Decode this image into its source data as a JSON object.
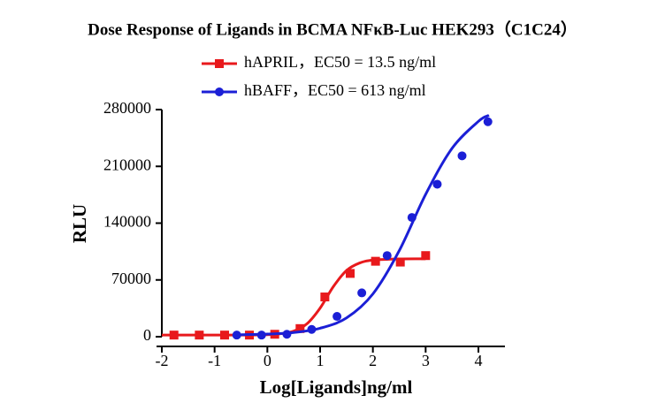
{
  "chart_data": {
    "type": "dose-response",
    "title": "Dose Response of Ligands in BCMA NFκB-Luc HEK293（C1C24）",
    "x_label": "Log[Ligands]ng/ml",
    "y_label": "RLU",
    "xlim": [
      -2,
      4.5
    ],
    "xticks": [
      -2,
      -1,
      0,
      1,
      2,
      3,
      4
    ],
    "ylim": [
      0,
      280000
    ],
    "yticks": [
      0,
      70000,
      140000,
      210000,
      280000
    ],
    "series": [
      {
        "name": "hAPRIL，EC50 = 13.5 ng/ml",
        "color": "#e8191c",
        "marker": "square",
        "x": [
          -1.77,
          -1.29,
          -0.81,
          -0.34,
          0.14,
          0.62,
          1.09,
          1.57,
          2.05,
          2.52,
          3.0
        ],
        "values": [
          2000,
          2000,
          2000,
          2000,
          3000,
          10000,
          49000,
          78000,
          93000,
          92000,
          100000
        ],
        "fit": {
          "x": [
            -2,
            -1,
            -0.5,
            0,
            0.25,
            0.5,
            0.75,
            1,
            1.25,
            1.5,
            1.75,
            2,
            2.5,
            3
          ],
          "values": [
            2000,
            2000,
            2050,
            2514,
            3605,
            6896,
            15926,
            35333,
            61683,
            81526,
            90889,
            94320,
            95831,
            95980
          ]
        }
      },
      {
        "name": "hBAFF，EC50 = 613 ng/ml",
        "color": "#1b1fd6",
        "marker": "circle",
        "x": [
          -0.58,
          -0.11,
          0.37,
          0.84,
          1.32,
          1.79,
          2.27,
          2.74,
          3.22,
          3.69,
          4.18
        ],
        "values": [
          2000,
          2000,
          3000,
          9000,
          25000,
          54000,
          100000,
          147000,
          188000,
          223000,
          265000
        ],
        "fit": {
          "x": [
            -0.5,
            0,
            0.5,
            1,
            1.5,
            2,
            2.5,
            3,
            3.5,
            4,
            4.2
          ],
          "values": [
            2456,
            3226,
            5200,
            10444,
            23176,
            52704,
            106121,
            175494,
            232216,
            265495,
            272931
          ]
        }
      }
    ]
  }
}
